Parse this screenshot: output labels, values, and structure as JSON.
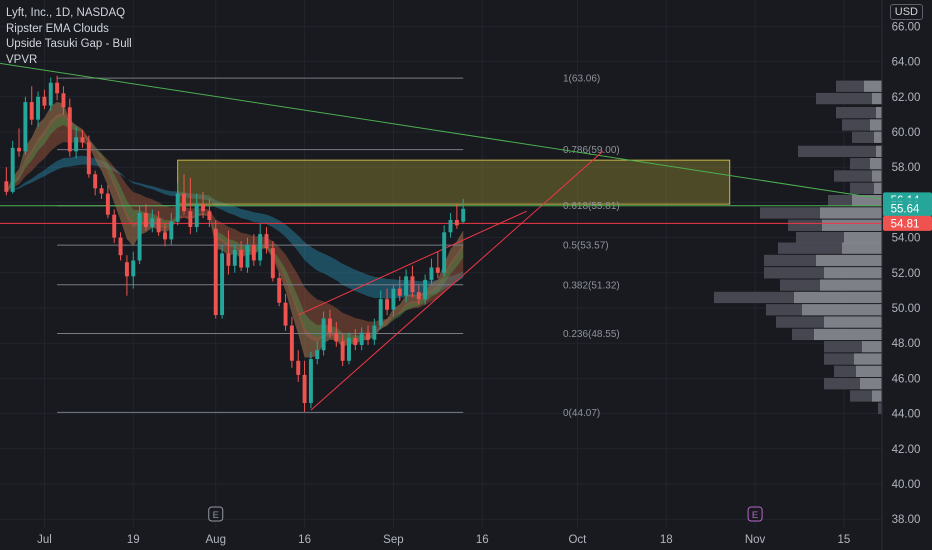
{
  "legend": {
    "symbol": "Lyft, Inc., 1D, NASDAQ",
    "studies": [
      "Ripster EMA Clouds",
      "Upside Tasuki Gap - Bull",
      "VPVR"
    ]
  },
  "currency": "USD",
  "colors": {
    "background": "#181a20",
    "grid": "#22252d",
    "up": "#26a69a",
    "down": "#ef5350",
    "fib": "#787b86",
    "trend_green": "#4caf50",
    "wedge": "#f23645",
    "zone_fill": "#8d8433",
    "vp_dark": "#4b4d55",
    "vp_light": "#8a8c93"
  },
  "chart_data": {
    "type": "candlestick",
    "title": "Lyft, Inc., 1D, NASDAQ",
    "y_range": [
      37.5,
      67.5
    ],
    "y_ticks": [
      "38.00",
      "40.00",
      "42.00",
      "44.00",
      "46.00",
      "48.00",
      "50.00",
      "52.00",
      "54.00",
      "56.00",
      "58.00",
      "60.00",
      "62.00",
      "64.00",
      "66.00"
    ],
    "x_ticks": [
      "Jul",
      "19",
      "Aug",
      "16",
      "Sep",
      "16",
      "Oct",
      "18",
      "Nov",
      "15"
    ],
    "x_tick_days": [
      0,
      14,
      27,
      41,
      55,
      69,
      84,
      98,
      112,
      126
    ],
    "day_span": [
      -7,
      132
    ],
    "candles": [
      {
        "d": -6,
        "o": 57.2,
        "h": 58.0,
        "l": 56.4,
        "c": 56.6
      },
      {
        "d": -5,
        "o": 56.6,
        "h": 59.5,
        "l": 56.5,
        "c": 59.1
      },
      {
        "d": -4,
        "o": 59.1,
        "h": 60.2,
        "l": 58.6,
        "c": 58.9
      },
      {
        "d": -3,
        "o": 58.9,
        "h": 62.0,
        "l": 58.7,
        "c": 61.7
      },
      {
        "d": -2,
        "o": 61.7,
        "h": 62.6,
        "l": 60.4,
        "c": 60.7
      },
      {
        "d": -1,
        "o": 60.7,
        "h": 62.3,
        "l": 60.3,
        "c": 62.0
      },
      {
        "d": 0,
        "o": 62.0,
        "h": 62.4,
        "l": 61.3,
        "c": 61.5
      },
      {
        "d": 1,
        "o": 61.5,
        "h": 63.1,
        "l": 61.2,
        "c": 62.8
      },
      {
        "d": 2,
        "o": 62.8,
        "h": 63.2,
        "l": 61.8,
        "c": 62.2
      },
      {
        "d": 3,
        "o": 62.2,
        "h": 62.6,
        "l": 61.0,
        "c": 61.4
      },
      {
        "d": 4,
        "o": 61.4,
        "h": 61.9,
        "l": 58.6,
        "c": 58.9
      },
      {
        "d": 5,
        "o": 58.9,
        "h": 60.3,
        "l": 58.5,
        "c": 59.7
      },
      {
        "d": 6,
        "o": 59.7,
        "h": 60.1,
        "l": 59.1,
        "c": 59.4
      },
      {
        "d": 7,
        "o": 59.4,
        "h": 59.8,
        "l": 57.4,
        "c": 57.6
      },
      {
        "d": 8,
        "o": 57.6,
        "h": 57.8,
        "l": 56.4,
        "c": 56.8
      },
      {
        "d": 9,
        "o": 56.8,
        "h": 57.0,
        "l": 56.2,
        "c": 56.5
      },
      {
        "d": 10,
        "o": 56.5,
        "h": 57.0,
        "l": 55.1,
        "c": 55.3
      },
      {
        "d": 11,
        "o": 55.3,
        "h": 55.6,
        "l": 53.7,
        "c": 54.0
      },
      {
        "d": 12,
        "o": 54.0,
        "h": 54.3,
        "l": 52.7,
        "c": 53.0
      },
      {
        "d": 13,
        "o": 52.6,
        "h": 53.0,
        "l": 50.7,
        "c": 51.8
      },
      {
        "d": 14,
        "o": 51.8,
        "h": 53.2,
        "l": 51.1,
        "c": 52.7
      },
      {
        "d": 15,
        "o": 52.7,
        "h": 55.8,
        "l": 52.5,
        "c": 55.4
      },
      {
        "d": 16,
        "o": 55.4,
        "h": 55.9,
        "l": 54.4,
        "c": 54.6
      },
      {
        "d": 17,
        "o": 54.6,
        "h": 55.6,
        "l": 54.3,
        "c": 55.1
      },
      {
        "d": 18,
        "o": 55.1,
        "h": 55.5,
        "l": 54.1,
        "c": 54.3
      },
      {
        "d": 19,
        "o": 54.3,
        "h": 54.8,
        "l": 53.5,
        "c": 53.9
      },
      {
        "d": 20,
        "o": 53.9,
        "h": 55.4,
        "l": 53.6,
        "c": 54.9
      },
      {
        "d": 21,
        "o": 54.9,
        "h": 57.1,
        "l": 54.7,
        "c": 56.5
      },
      {
        "d": 22,
        "o": 56.5,
        "h": 57.6,
        "l": 55.3,
        "c": 55.5
      },
      {
        "d": 23,
        "o": 55.5,
        "h": 57.4,
        "l": 54.2,
        "c": 54.6
      },
      {
        "d": 24,
        "o": 54.6,
        "h": 56.5,
        "l": 54.3,
        "c": 55.9
      },
      {
        "d": 25,
        "o": 55.9,
        "h": 56.6,
        "l": 55.1,
        "c": 55.5
      },
      {
        "d": 26,
        "o": 55.5,
        "h": 56.2,
        "l": 54.6,
        "c": 55.0
      },
      {
        "d": 27,
        "o": 54.5,
        "h": 55.0,
        "l": 49.4,
        "c": 49.6
      },
      {
        "d": 28,
        "o": 49.6,
        "h": 53.6,
        "l": 49.4,
        "c": 53.1
      },
      {
        "d": 29,
        "o": 53.1,
        "h": 54.4,
        "l": 51.9,
        "c": 52.4
      },
      {
        "d": 30,
        "o": 52.4,
        "h": 53.6,
        "l": 52.0,
        "c": 53.3
      },
      {
        "d": 31,
        "o": 53.3,
        "h": 53.8,
        "l": 52.1,
        "c": 52.3
      },
      {
        "d": 32,
        "o": 52.3,
        "h": 54.0,
        "l": 52.0,
        "c": 53.6
      },
      {
        "d": 33,
        "o": 53.6,
        "h": 54.2,
        "l": 52.4,
        "c": 52.7
      },
      {
        "d": 34,
        "o": 52.7,
        "h": 54.8,
        "l": 52.4,
        "c": 54.2
      },
      {
        "d": 35,
        "o": 54.2,
        "h": 54.6,
        "l": 53.1,
        "c": 53.4
      },
      {
        "d": 36,
        "o": 53.4,
        "h": 53.8,
        "l": 51.5,
        "c": 51.7
      },
      {
        "d": 37,
        "o": 51.7,
        "h": 52.0,
        "l": 50.1,
        "c": 50.3
      },
      {
        "d": 38,
        "o": 50.3,
        "h": 50.8,
        "l": 48.7,
        "c": 49.0
      },
      {
        "d": 39,
        "o": 49.0,
        "h": 49.5,
        "l": 46.6,
        "c": 47.0
      },
      {
        "d": 40,
        "o": 47.0,
        "h": 47.6,
        "l": 45.8,
        "c": 46.2
      },
      {
        "d": 41,
        "o": 46.2,
        "h": 47.0,
        "l": 44.1,
        "c": 44.6
      },
      {
        "d": 42,
        "o": 44.6,
        "h": 47.5,
        "l": 44.3,
        "c": 47.1
      },
      {
        "d": 43,
        "o": 47.1,
        "h": 48.1,
        "l": 46.8,
        "c": 47.6
      },
      {
        "d": 44,
        "o": 47.6,
        "h": 49.8,
        "l": 47.3,
        "c": 49.4
      },
      {
        "d": 45,
        "o": 49.4,
        "h": 49.9,
        "l": 48.3,
        "c": 48.6
      },
      {
        "d": 46,
        "o": 48.6,
        "h": 49.2,
        "l": 47.8,
        "c": 48.1
      },
      {
        "d": 47,
        "o": 48.1,
        "h": 48.5,
        "l": 46.7,
        "c": 47.0
      },
      {
        "d": 48,
        "o": 47.0,
        "h": 48.6,
        "l": 46.8,
        "c": 48.3
      },
      {
        "d": 49,
        "o": 48.3,
        "h": 48.8,
        "l": 47.6,
        "c": 47.9
      },
      {
        "d": 50,
        "o": 47.9,
        "h": 48.9,
        "l": 47.6,
        "c": 48.6
      },
      {
        "d": 51,
        "o": 48.6,
        "h": 49.0,
        "l": 47.9,
        "c": 48.2
      },
      {
        "d": 52,
        "o": 48.2,
        "h": 49.4,
        "l": 47.9,
        "c": 49.0
      },
      {
        "d": 53,
        "o": 49.0,
        "h": 51.0,
        "l": 48.8,
        "c": 50.5
      },
      {
        "d": 54,
        "o": 50.5,
        "h": 51.1,
        "l": 49.6,
        "c": 49.9
      },
      {
        "d": 55,
        "o": 49.9,
        "h": 51.3,
        "l": 49.5,
        "c": 51.1
      },
      {
        "d": 56,
        "o": 51.1,
        "h": 51.8,
        "l": 50.4,
        "c": 50.7
      },
      {
        "d": 57,
        "o": 50.7,
        "h": 52.2,
        "l": 50.3,
        "c": 51.8
      },
      {
        "d": 58,
        "o": 51.8,
        "h": 52.4,
        "l": 50.6,
        "c": 50.9
      },
      {
        "d": 59,
        "o": 50.9,
        "h": 51.3,
        "l": 50.2,
        "c": 50.5
      },
      {
        "d": 60,
        "o": 50.5,
        "h": 51.9,
        "l": 50.2,
        "c": 51.6
      },
      {
        "d": 61,
        "o": 51.6,
        "h": 52.8,
        "l": 51.3,
        "c": 52.3
      },
      {
        "d": 62,
        "o": 52.3,
        "h": 53.2,
        "l": 51.7,
        "c": 52.0
      },
      {
        "d": 63,
        "o": 52.0,
        "h": 54.7,
        "l": 51.8,
        "c": 54.3
      },
      {
        "d": 64,
        "o": 54.3,
        "h": 55.4,
        "l": 54.0,
        "c": 55.0
      },
      {
        "d": 65,
        "o": 55.0,
        "h": 55.9,
        "l": 54.5,
        "c": 54.7
      },
      {
        "d": 66,
        "o": 54.9,
        "h": 56.2,
        "l": 54.8,
        "c": 55.64
      }
    ],
    "fib_levels": [
      {
        "label": "1(63.06)",
        "value": 63.06
      },
      {
        "label": "0.786(59.00)",
        "value": 59.0
      },
      {
        "label": "0.618(55.81)",
        "value": 55.81
      },
      {
        "label": "0.5(53.57)",
        "value": 53.57
      },
      {
        "label": "0.382(51.32)",
        "value": 51.32
      },
      {
        "label": "0.236(48.55)",
        "value": 48.55
      },
      {
        "label": "0(44.07)",
        "value": 44.07
      }
    ],
    "fib_day_range": [
      2,
      66
    ],
    "zone": {
      "d0": 21,
      "d1": 108,
      "top": 58.4,
      "bottom": 55.9
    },
    "lines": [
      {
        "name": "trend-down",
        "color": "trend_green",
        "d0": -7,
        "v0": 63.9,
        "d1": 132,
        "v1": 56.2
      },
      {
        "name": "wedge-lower",
        "color": "wedge",
        "d0": 42,
        "v0": 44.2,
        "d1": 88,
        "v1": 58.9
      },
      {
        "name": "wedge-upper",
        "color": "wedge",
        "d0": 40,
        "v0": 49.6,
        "d1": 76,
        "v1": 55.5
      },
      {
        "name": "level-55-81",
        "color": "trend_green",
        "d0": -7,
        "v0": 55.81,
        "d1": 132,
        "v1": 55.81
      },
      {
        "name": "level-54-81",
        "color": "wedge",
        "d0": -7,
        "v0": 54.81,
        "d1": 132,
        "v1": 54.81
      }
    ],
    "price_labels": [
      {
        "text": "56.14",
        "value": 56.14,
        "color": "#26a69a"
      },
      {
        "text": "55.81",
        "value": 55.81,
        "color": "#26a69a"
      },
      {
        "text": "55.64",
        "value": 55.64,
        "color": "#26a69a"
      },
      {
        "text": "54.81",
        "value": 54.81,
        "color": "#ef5350"
      }
    ],
    "events": [
      {
        "letter": "E",
        "day": 27,
        "color": "#9598a1"
      },
      {
        "letter": "E",
        "day": 112,
        "color": "#b667c9"
      }
    ],
    "volume_profile": [
      {
        "price": 62.6,
        "dark": 28,
        "light": 18
      },
      {
        "price": 61.9,
        "dark": 56,
        "light": 10
      },
      {
        "price": 61.1,
        "dark": 40,
        "light": 6
      },
      {
        "price": 60.4,
        "dark": 28,
        "light": 12
      },
      {
        "price": 59.7,
        "dark": 22,
        "light": 8
      },
      {
        "price": 58.9,
        "dark": 78,
        "light": 6
      },
      {
        "price": 58.2,
        "dark": 20,
        "light": 12
      },
      {
        "price": 57.5,
        "dark": 38,
        "light": 10
      },
      {
        "price": 56.8,
        "dark": 24,
        "light": 8
      },
      {
        "price": 56.1,
        "dark": 24,
        "light": 30
      },
      {
        "price": 55.4,
        "dark": 60,
        "light": 62
      },
      {
        "price": 54.7,
        "dark": 34,
        "light": 60
      },
      {
        "price": 54.0,
        "dark": 48,
        "light": 38
      },
      {
        "price": 53.4,
        "dark": 64,
        "light": 40
      },
      {
        "price": 52.7,
        "dark": 52,
        "light": 66
      },
      {
        "price": 52.0,
        "dark": 60,
        "light": 58
      },
      {
        "price": 51.3,
        "dark": 40,
        "light": 62
      },
      {
        "price": 50.6,
        "dark": 80,
        "light": 88
      },
      {
        "price": 49.9,
        "dark": 36,
        "light": 80
      },
      {
        "price": 49.2,
        "dark": 48,
        "light": 58
      },
      {
        "price": 48.5,
        "dark": 22,
        "light": 68
      },
      {
        "price": 47.8,
        "dark": 38,
        "light": 20
      },
      {
        "price": 47.1,
        "dark": 30,
        "light": 28
      },
      {
        "price": 46.4,
        "dark": 22,
        "light": 26
      },
      {
        "price": 45.7,
        "dark": 36,
        "light": 22
      },
      {
        "price": 45.0,
        "dark": 22,
        "light": 10
      },
      {
        "price": 44.3,
        "dark": 4,
        "light": 0
      }
    ]
  }
}
